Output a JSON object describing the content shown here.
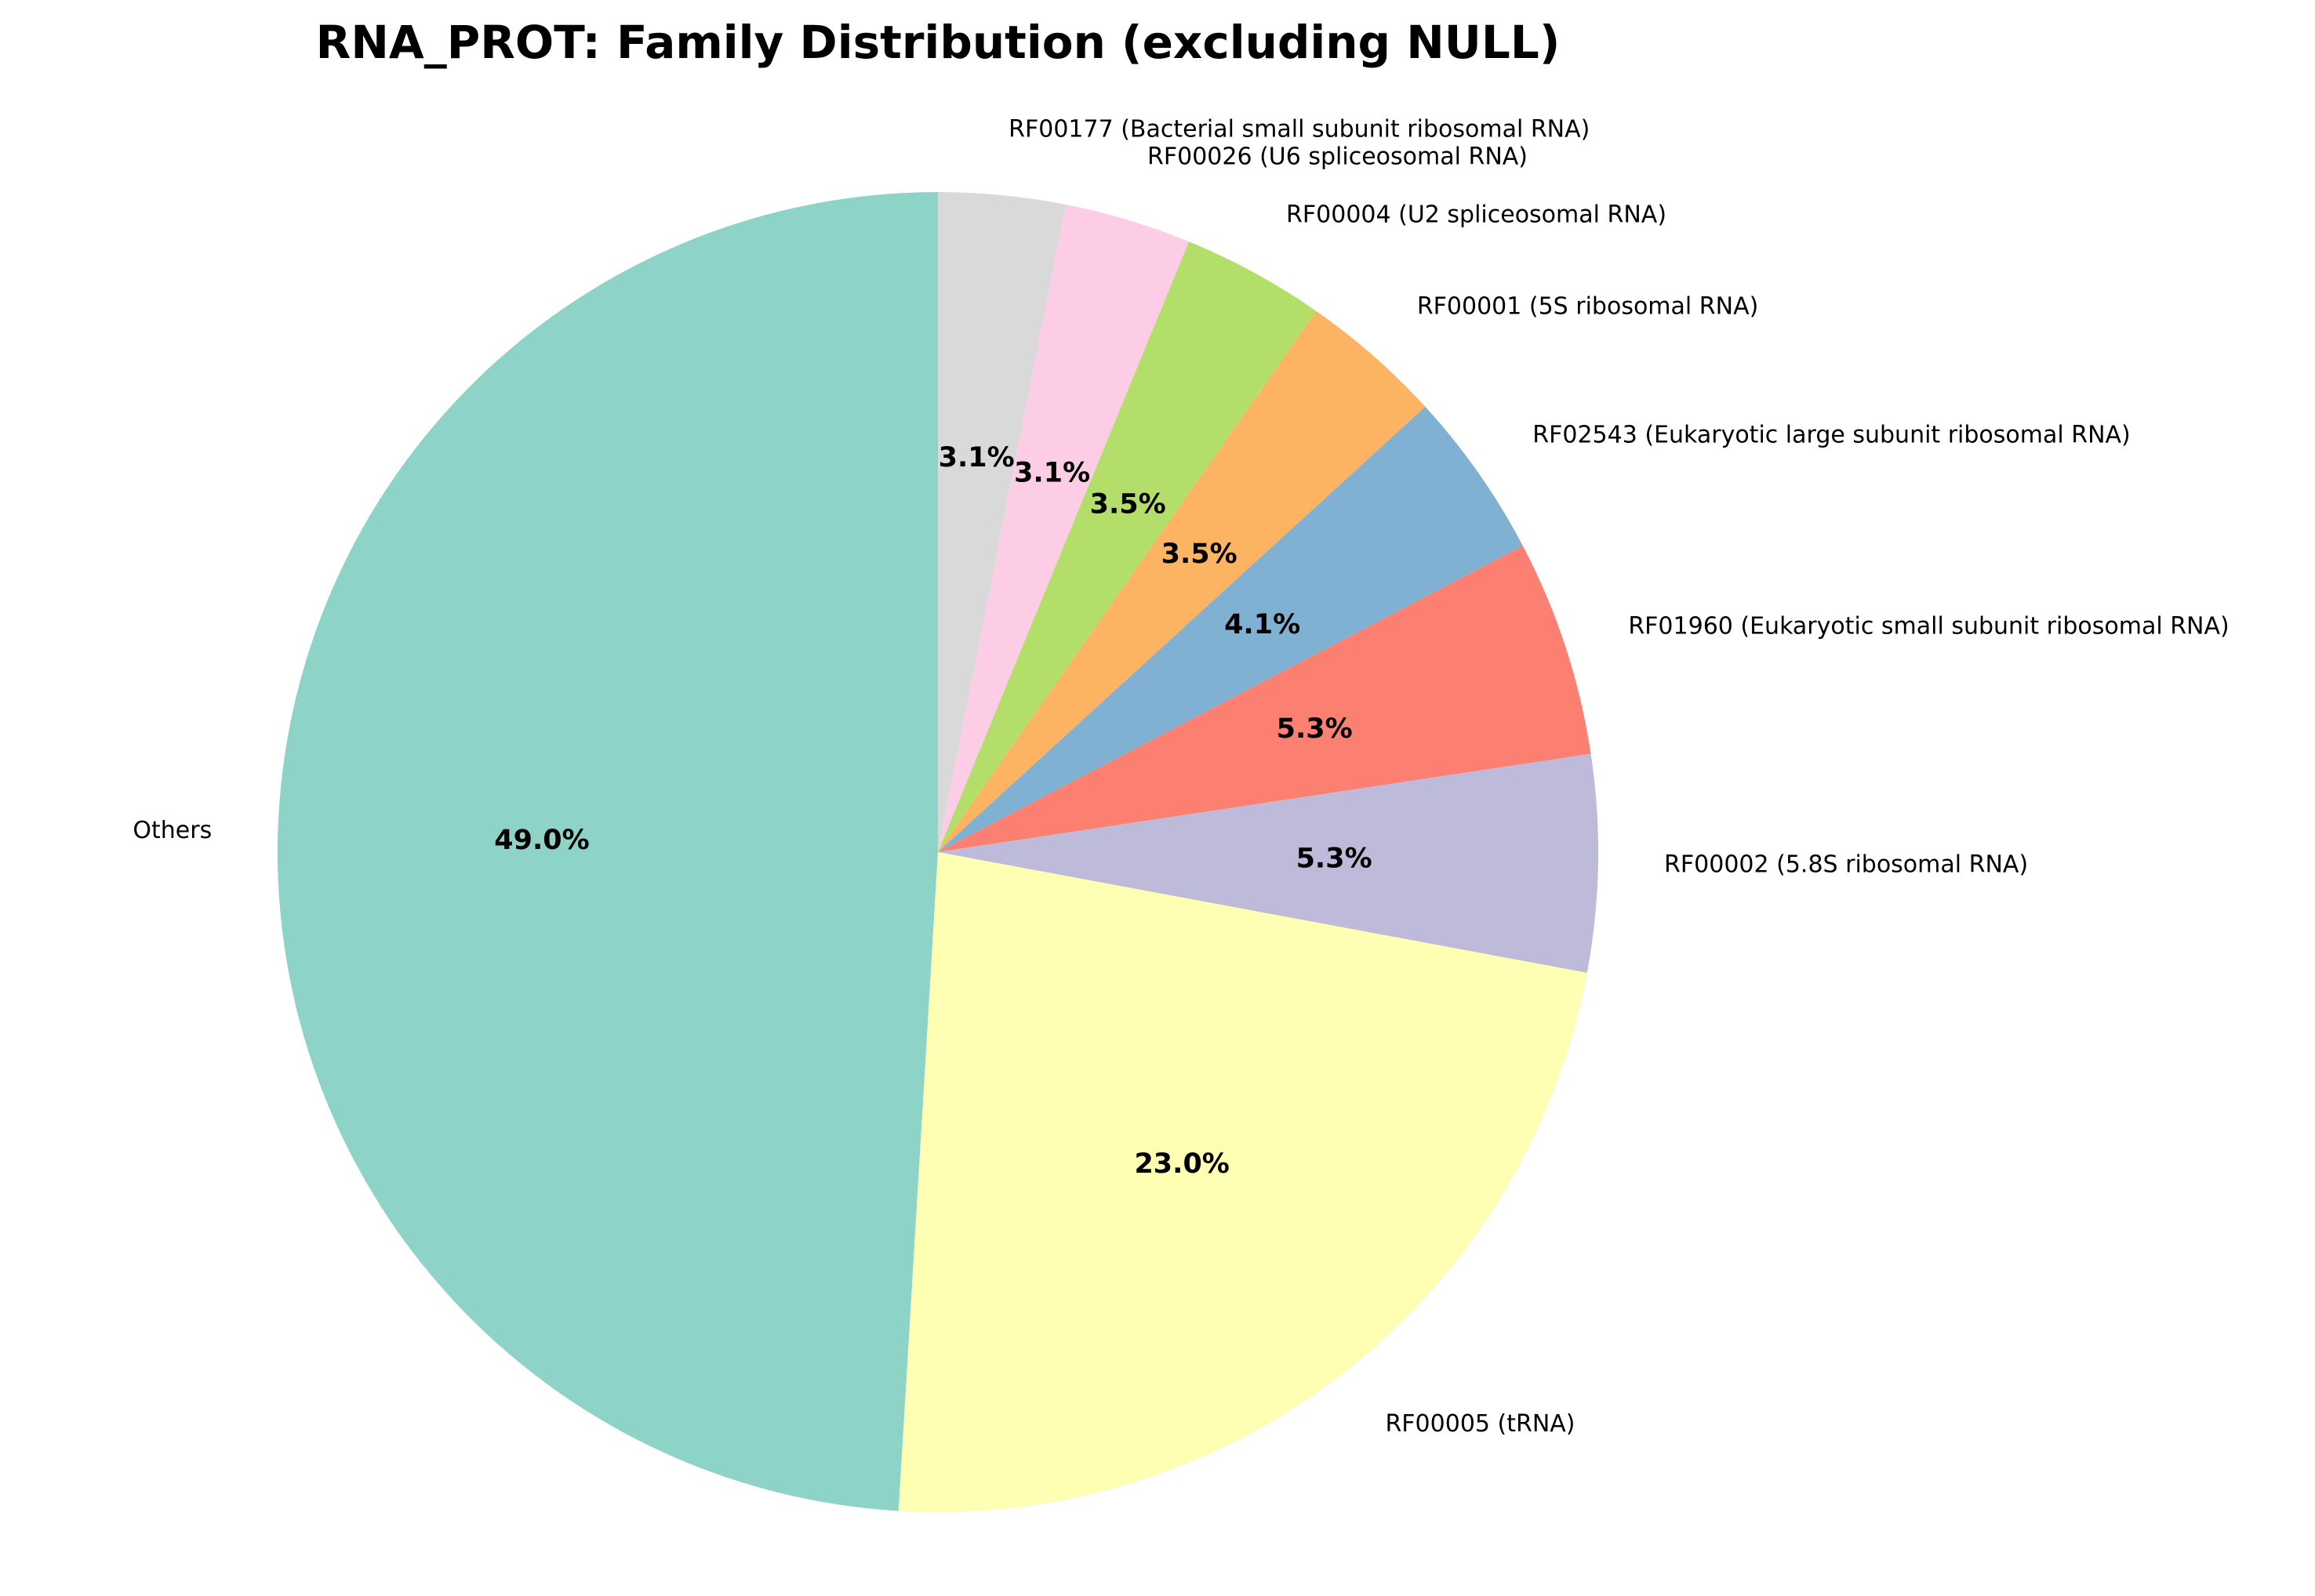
{
  "chart_data": {
    "type": "pie",
    "title": "RNA_PROT: Family Distribution (excluding NULL)",
    "start_angle_deg": 90,
    "direction": "clockwise",
    "slices": [
      {
        "label": "RF00177 (Bacterial small subunit ribosomal RNA)",
        "value": 3.1,
        "pct_text": "3.1%",
        "color": "#d9d9d9"
      },
      {
        "label": "RF00026 (U6 spliceosomal RNA)",
        "value": 3.1,
        "pct_text": "3.1%",
        "color": "#fccde5"
      },
      {
        "label": "RF00004 (U2 spliceosomal RNA)",
        "value": 3.5,
        "pct_text": "3.5%",
        "color": "#b3de69"
      },
      {
        "label": "RF00001 (5S ribosomal RNA)",
        "value": 3.5,
        "pct_text": "3.5%",
        "color": "#fdb462"
      },
      {
        "label": "RF02543 (Eukaryotic large subunit ribosomal RNA)",
        "value": 4.1,
        "pct_text": "4.1%",
        "color": "#80b1d3"
      },
      {
        "label": "RF01960 (Eukaryotic small subunit ribosomal RNA)",
        "value": 5.3,
        "pct_text": "5.3%",
        "color": "#fb8072"
      },
      {
        "label": "RF00002 (5.8S ribosomal RNA)",
        "value": 5.3,
        "pct_text": "5.3%",
        "color": "#bebada"
      },
      {
        "label": "RF00005 (tRNA)",
        "value": 23.0,
        "pct_text": "23.0%",
        "color": "#ffffb3"
      },
      {
        "label": "Others",
        "value": 49.0,
        "pct_text": "49.0%",
        "color": "#8dd3c7"
      }
    ]
  }
}
